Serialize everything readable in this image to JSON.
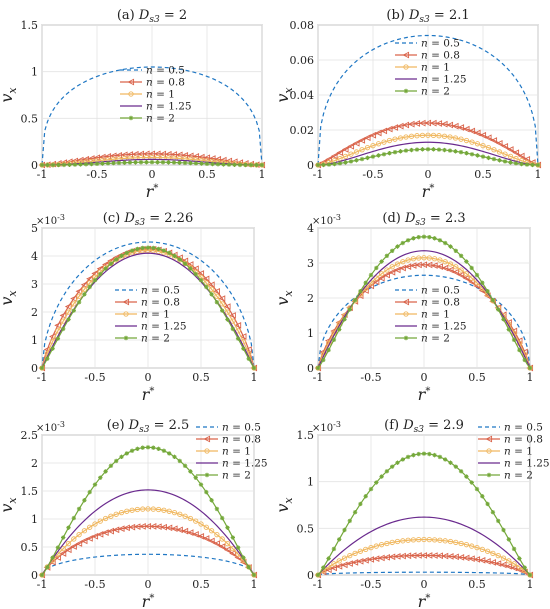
{
  "figure": {
    "x_axis_label": "r*",
    "y_axis_label": "v_x",
    "series_style": {
      "n = 0.5": {
        "color": "#1f77c4",
        "marker": "none",
        "dash": "4,3"
      },
      "n = 0.8": {
        "color": "#d9634a",
        "marker": "triangle-left",
        "dash": ""
      },
      "n = 1": {
        "color": "#f0b860",
        "marker": "circle",
        "dash": ""
      },
      "n = 1.25": {
        "color": "#6a2a8e",
        "marker": "none",
        "dash": ""
      },
      "n = 2": {
        "color": "#74a83a",
        "marker": "asterisk",
        "dash": ""
      }
    }
  },
  "chart_data": [
    {
      "type": "line",
      "title": "(a) D_s3 = 2",
      "xlabel": "r*",
      "ylabel": "v_x",
      "xlim": [
        -1,
        1
      ],
      "ylim": [
        0,
        1.5
      ],
      "xticks": [
        "-1",
        "-0.5",
        "0",
        "0.5",
        "1"
      ],
      "yticks": [
        "0",
        "0.5",
        "1",
        "1.5"
      ],
      "exponent_label": "",
      "grid": true,
      "legend_position": "center",
      "series": [
        {
          "name": "n = 0.5",
          "peak": 1.05,
          "shape": 0.35
        },
        {
          "name": "n = 0.8",
          "peak": 0.12,
          "shape": 1.5
        },
        {
          "name": "n = 1",
          "peak": 0.08,
          "shape": 2
        },
        {
          "name": "n = 1.25",
          "peak": 0.06,
          "shape": 2.5
        },
        {
          "name": "n = 2",
          "peak": 0.03,
          "shape": 3
        }
      ]
    },
    {
      "type": "line",
      "title": "(b) D_s3 = 2.1",
      "xlabel": "r*",
      "ylabel": "v_x",
      "xlim": [
        -1,
        1
      ],
      "ylim": [
        0,
        0.08
      ],
      "xticks": [
        "-1",
        "-0.5",
        "0",
        "0.5",
        "1"
      ],
      "yticks": [
        "0",
        "0.02",
        "0.04",
        "0.06",
        "0.08"
      ],
      "exponent_label": "",
      "grid": true,
      "legend_position": "upper-center",
      "series": [
        {
          "name": "n = 0.5",
          "peak": 0.074,
          "shape": 0.4
        },
        {
          "name": "n = 0.8",
          "peak": 0.024,
          "shape": 1.2
        },
        {
          "name": "n = 1",
          "peak": 0.017,
          "shape": 1.5
        },
        {
          "name": "n = 1.25",
          "peak": 0.013,
          "shape": 1.8
        },
        {
          "name": "n = 2",
          "peak": 0.009,
          "shape": 2.2
        }
      ]
    },
    {
      "type": "line",
      "title": "(c) D_s3 = 2.26",
      "xlabel": "r*",
      "ylabel": "v_x",
      "xlim": [
        -1,
        1
      ],
      "ylim": [
        0,
        5
      ],
      "xticks": [
        "-1",
        "-0.5",
        "0",
        "0.5",
        "1"
      ],
      "yticks": [
        "0",
        "1",
        "2",
        "3",
        "4",
        "5"
      ],
      "exponent_label": "×10",
      "exponent_power": "-3",
      "grid": true,
      "legend_position": "bottom-center",
      "series": [
        {
          "name": "n = 0.5",
          "peak": 4.5,
          "shape": 0.55
        },
        {
          "name": "n = 0.8",
          "peak": 4.25,
          "shape": 0.8
        },
        {
          "name": "n = 1",
          "peak": 4.2,
          "shape": 0.9
        },
        {
          "name": "n = 1.25",
          "peak": 4.1,
          "shape": 1.0
        },
        {
          "name": "n = 2",
          "peak": 4.3,
          "shape": 1.1
        }
      ]
    },
    {
      "type": "line",
      "title": "(d) D_s3 = 2.3",
      "xlabel": "r*",
      "ylabel": "v_x",
      "xlim": [
        -1,
        1
      ],
      "ylim": [
        0,
        4
      ],
      "xticks": [
        "-1",
        "-0.5",
        "0",
        "0.5",
        "1"
      ],
      "yticks": [
        "0",
        "1",
        "2",
        "3",
        "4"
      ],
      "exponent_label": "×10",
      "exponent_power": "-3",
      "grid": true,
      "legend_position": "bottom-center",
      "series": [
        {
          "name": "n = 0.5",
          "peak": 2.65,
          "shape": 0.5
        },
        {
          "name": "n = 0.8",
          "peak": 2.95,
          "shape": 0.8
        },
        {
          "name": "n = 1",
          "peak": 3.15,
          "shape": 0.9
        },
        {
          "name": "n = 1.25",
          "peak": 3.35,
          "shape": 1.0
        },
        {
          "name": "n = 2",
          "peak": 3.75,
          "shape": 1.2
        }
      ]
    },
    {
      "type": "line",
      "title": "(e) D_s3 = 2.5",
      "xlabel": "r*",
      "ylabel": "v_x",
      "xlim": [
        -1,
        1
      ],
      "ylim": [
        0,
        2.5
      ],
      "xticks": [
        "-1",
        "-0.5",
        "0",
        "0.5",
        "1"
      ],
      "yticks": [
        "0",
        "0.5",
        "1",
        "1.5",
        "2",
        "2.5"
      ],
      "exponent_label": "×10",
      "exponent_power": "-3",
      "grid": true,
      "legend_position": "top-right",
      "series": [
        {
          "name": "n = 0.5",
          "peak": 0.37,
          "shape": 0.5
        },
        {
          "name": "n = 0.8",
          "peak": 0.87,
          "shape": 0.8
        },
        {
          "name": "n = 1",
          "peak": 1.18,
          "shape": 0.9
        },
        {
          "name": "n = 1.25",
          "peak": 1.52,
          "shape": 1.0
        },
        {
          "name": "n = 2",
          "peak": 2.28,
          "shape": 1.2
        }
      ]
    },
    {
      "type": "line",
      "title": "(f) D_s3 = 2.9",
      "xlabel": "r*",
      "ylabel": "v_x",
      "xlim": [
        -1,
        1
      ],
      "ylim": [
        0,
        1.5
      ],
      "xticks": [
        "-1",
        "-0.5",
        "0",
        "0.5",
        "1"
      ],
      "yticks": [
        "0",
        "0.5",
        "1",
        "1.5"
      ],
      "exponent_label": "×10",
      "exponent_power": "-3",
      "grid": true,
      "legend_position": "top-right",
      "series": [
        {
          "name": "n = 0.5",
          "peak": 0.03,
          "shape": 0.5
        },
        {
          "name": "n = 0.8",
          "peak": 0.21,
          "shape": 0.8
        },
        {
          "name": "n = 1",
          "peak": 0.38,
          "shape": 0.9
        },
        {
          "name": "n = 1.25",
          "peak": 0.62,
          "shape": 1.0
        },
        {
          "name": "n = 2",
          "peak": 1.3,
          "shape": 1.2
        }
      ]
    }
  ]
}
